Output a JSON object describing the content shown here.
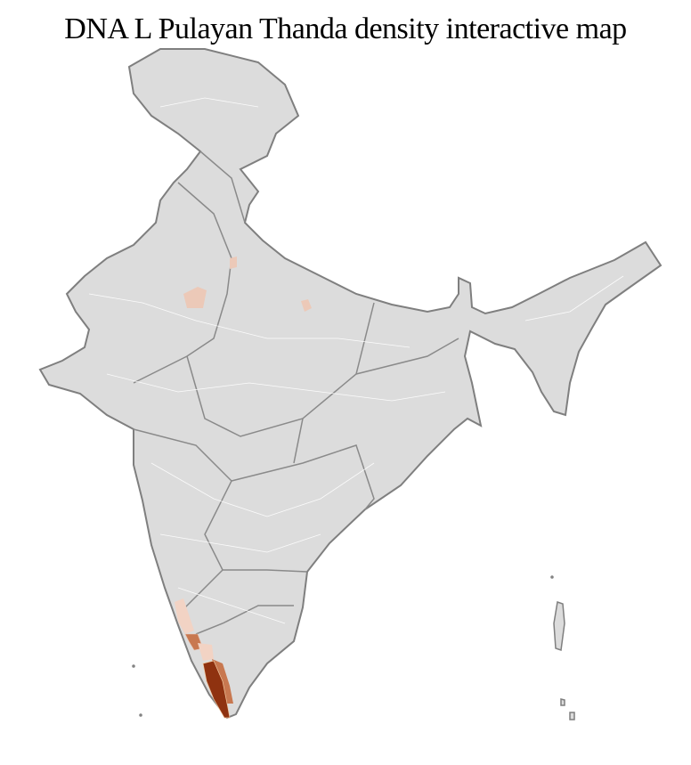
{
  "title": "DNA L Pulayan Thanda density interactive map",
  "colors": {
    "land": "#dcdcdc",
    "border": "#7f7f7f",
    "district": "#ffffff",
    "density_low": "#f2d3c4",
    "density_mid": "#c87850",
    "density_high": "#9a3510",
    "density_max": "#7a2a08"
  }
}
